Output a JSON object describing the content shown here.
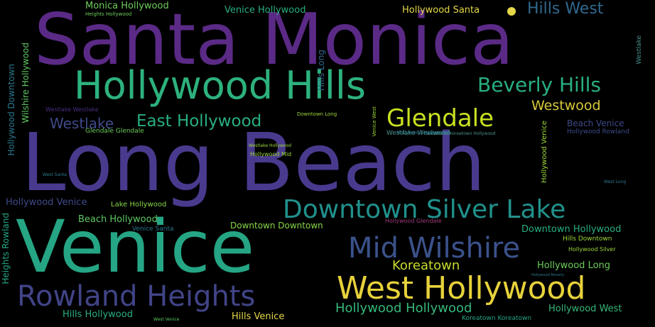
{
  "palette": {
    "background": "#000000",
    "purple": "#5b2a86",
    "indigo": "#3e3f93",
    "blue": "#2f5d8c",
    "teal": "#21918c",
    "green": "#2db27d",
    "lime": "#73d055",
    "yellow": "#fde725"
  },
  "words": {
    "santa_monica": "Santa Monica",
    "long_beach": "Long Beach",
    "venice": "Venice",
    "hollywood_hills": "Hollywood Hills",
    "west_hollywood": "West Hollywood",
    "downtown_silver_lake": "Downtown Silver Lake",
    "rowland_heights": "Rowland Heights",
    "mid_wilshire": "Mid Wilshire",
    "beverly_hills": "Beverly Hills",
    "glendale": "Glendale",
    "east_hollywood": "East Hollywood",
    "westwood": "Westwood",
    "hills_west": "Hills West",
    "westlake": "Westlake",
    "koreatown": "Koreatown",
    "hollywood_hollywood": "Hollywood Hollywood",
    "monica_hollywood": "Monica Hollywood",
    "venice_hollywood": "Venice Hollywood",
    "hollywood_santa": "Hollywood Santa",
    "beach_hollywood": "Beach Hollywood",
    "downtown_downtown": "Downtown Downtown",
    "downtown_hollywood": "Downtown Hollywood",
    "hollywood_venice": "Hollywood Venice",
    "lake_hollywood": "Lake Hollywood",
    "hollywood_long": "Hollywood Long",
    "hollywood_west": "Hollywood West",
    "hills_hollywood": "Hills Hollywood",
    "hills_venice": "Hills Venice",
    "beach_venice": "Beach Venice",
    "hollywood_rowland": "Hollywood Rowland",
    "venice_santa": "Venice Santa",
    "westlake_westlake": "Westlake Westlake",
    "glendale_glendale": "Glendale Glendale",
    "hollywood_mid": "Hollywood Mid",
    "westlake_hollywood": "Westlake Hollywood",
    "downtown_long": "Downtown Long",
    "westlake_westwood": "Westlake Westwood",
    "westwood_koreatown_hollywood": "Westwood Koreatown Hollywood",
    "hollywood_glendale": "Hollywood Glendale",
    "koreatown_koreatown": "Koreatown Koreatown",
    "hills_downtown": "Hills Downtown",
    "hollywood_silver": "Hollywood Silver",
    "hollywood_beverly": "Hollywood Beverly",
    "west_venice": "West Venice",
    "west_santa": "West Santa",
    "west_long": "West Long",
    "hollywood_downtown": "Hollywood Downtown",
    "wilshire_hollywood": "Wilshire Hollywood",
    "heights_rowland": "Heights Rowland",
    "heights_hollywood": "Heights Hollywood",
    "hills_long": "Hills Long",
    "venice_west": "Venice West"
  }
}
